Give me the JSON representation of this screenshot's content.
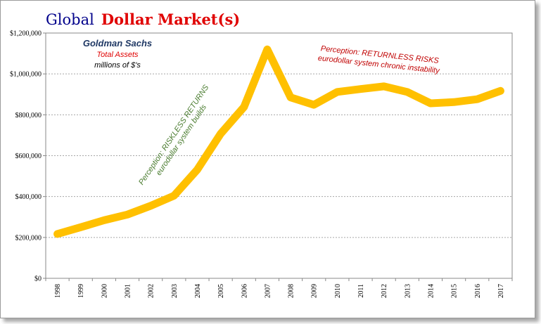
{
  "title": {
    "part1": "Global",
    "part2": "Dollar Market(s)",
    "part1_color": "#00008B",
    "part2_color": "#E00000"
  },
  "annotations": {
    "company": "Goldman Sachs",
    "metric": "Total Assets",
    "units": "millions of $'s",
    "company_color": "#1F3864",
    "metric_color": "#E00000",
    "units_color": "#000000",
    "left_line1": "Perception: RISKLESS RETURNS",
    "left_line2": "eurodollar  system builds",
    "left_color": "#4A7C2F",
    "right_line1": "Perception: RETURNLESS RISKS",
    "right_line2": "eurodollar  system chronic instability",
    "right_color": "#C00000"
  },
  "chart_data": {
    "type": "line",
    "x": [
      "1998",
      "1999",
      "2000",
      "2001",
      "2002",
      "2003",
      "2004",
      "2005",
      "2006",
      "2007",
      "2008",
      "2009",
      "2010",
      "2011",
      "2012",
      "2013",
      "2014",
      "2015",
      "2016",
      "2017"
    ],
    "series": [
      {
        "values": [
          217000,
          250000,
          284000,
          312000,
          355000,
          404000,
          532000,
          707000,
          838000,
          1120000,
          885000,
          849000,
          912000,
          926000,
          939000,
          912000,
          856000,
          862000,
          876000,
          917000
        ],
        "color": "#FFC000"
      }
    ],
    "yticks": [
      "$0",
      "$200,000",
      "$400,000",
      "$600,000",
      "$800,000",
      "$1,000,000",
      "$1,200,000"
    ],
    "ylim": [
      0,
      1200000
    ],
    "grid": true,
    "legend": "none"
  }
}
